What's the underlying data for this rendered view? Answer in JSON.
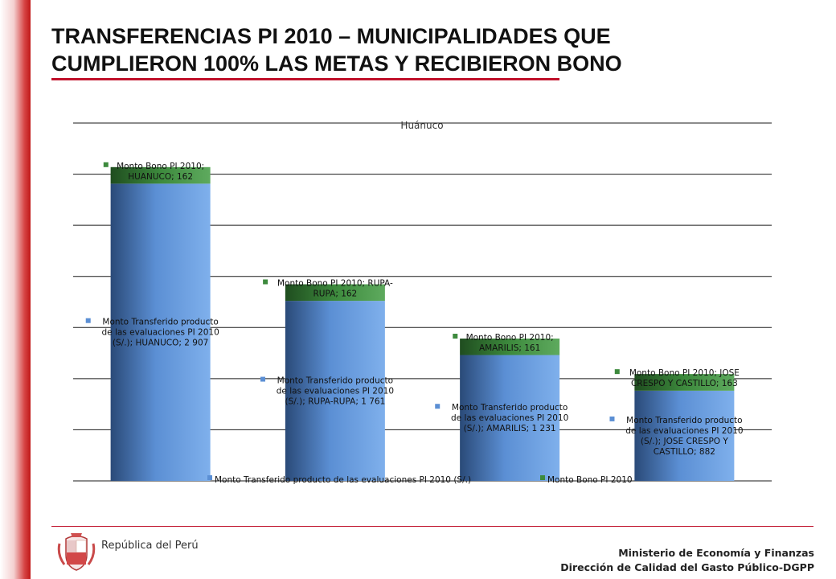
{
  "slide": {
    "title_line1": "TRANSFERENCIAS PI 2010 – MUNICIPALIDADES QUE",
    "title_line2": "CUMPLIERON 100% LAS METAS Y RECIBIERON BONO",
    "accent_color": "#c0112b"
  },
  "footer": {
    "republic": "República del Perú",
    "ministry": "Ministerio de Economía y Finanzas",
    "direction": "Dirección de Calidad del Gasto Público-DGPP",
    "emblem_icon": "peru-coat-of-arms-icon"
  },
  "chart_data": {
    "type": "bar",
    "stacked": true,
    "title": "Huánuco",
    "ylim": [
      0,
      3500
    ],
    "grid": true,
    "legend_position": "bottom",
    "categories": [
      "HUANUCO",
      "RUPA-RUPA",
      "AMARILIS",
      "JOSE CRESPO Y CASTILLO"
    ],
    "series": [
      {
        "name": "Monto Transferido producto de las evaluaciones PI 2010 (S/.)",
        "color": "#5b8fd4",
        "values": [
          2907,
          1761,
          1231,
          882
        ],
        "labels": [
          [
            "Monto Transferido producto",
            "de las evaluaciones PI 2010",
            "(S/.); HUANUCO; 2 907"
          ],
          [
            "Monto Transferido producto",
            "de las evaluaciones PI 2010",
            "(S/.); RUPA-RUPA; 1 761"
          ],
          [
            "Monto Transferido producto",
            "de las evaluaciones PI 2010",
            "(S/.); AMARILIS; 1 231"
          ],
          [
            "Monto Transferido producto",
            "de las evaluaciones PI 2010",
            "(S/.); JOSE CRESPO Y",
            "CASTILLO; 882"
          ]
        ]
      },
      {
        "name": "Monto Bono PI 2010",
        "color": "#3d8a3d",
        "values": [
          162,
          162,
          161,
          163
        ],
        "labels": [
          [
            "Monto Bono PI 2010;",
            "HUANUCO; 162"
          ],
          [
            "Monto Bono PI 2010; RUPA-",
            "RUPA; 162"
          ],
          [
            "Monto Bono PI 2010;",
            "AMARILIS; 161"
          ],
          [
            "Monto Bono PI 2010; JOSE",
            "CRESPO Y CASTILLO; 163"
          ]
        ]
      }
    ]
  }
}
